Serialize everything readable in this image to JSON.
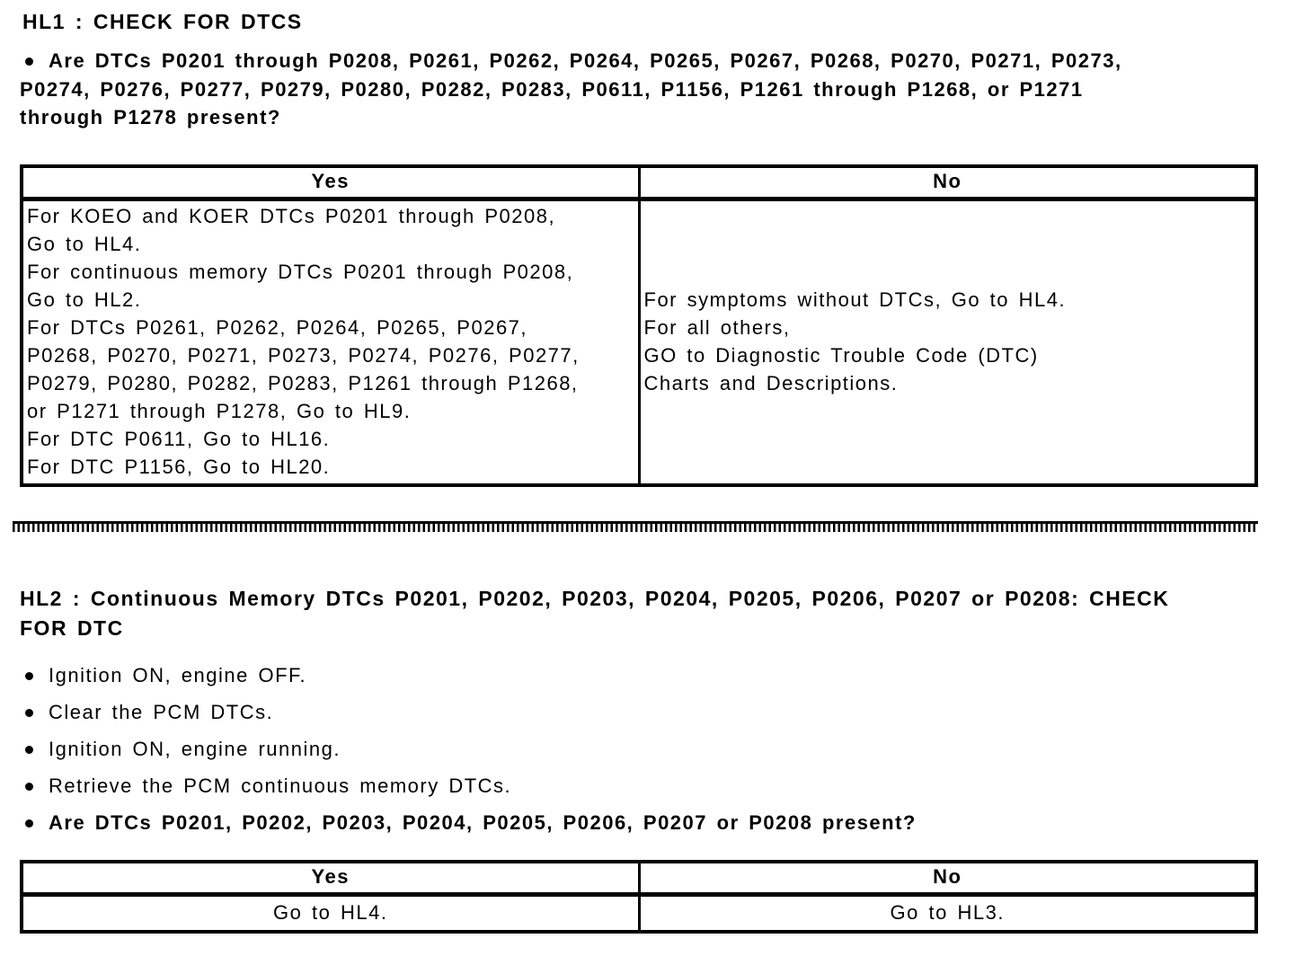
{
  "hl1": {
    "title": "HL1 : CHECK FOR DTCS",
    "question": "Are DTCs P0201 through P0208, P0261, P0262, P0264, P0265, P0267, P0268, P0270, P0271, P0273,\nP0274, P0276, P0277, P0279, P0280, P0282, P0283, P0611, P1156, P1261 through P1268, or P1271\nthrough P1278 present?",
    "table": {
      "yes_header": "Yes",
      "no_header": "No",
      "yes_text": "For KOEO and KOER DTCs P0201 through P0208,\nGo to HL4.\nFor continuous memory DTCs P0201 through P0208,\nGo to HL2.\nFor DTCs P0261, P0262, P0264, P0265, P0267,\nP0268, P0270, P0271, P0273, P0274, P0276, P0277,\nP0279, P0280, P0282, P0283, P1261 through P1268,\nor P1271 through P1278, Go to HL9.\nFor DTC P0611, Go to HL16.\nFor DTC P1156, Go to HL20.",
      "no_text": "For symptoms without DTCs, Go to HL4.\nFor all others,\nGO to Diagnostic Trouble Code (DTC)\nCharts and Descriptions."
    }
  },
  "hl2": {
    "title": "HL2 : Continuous Memory DTCs P0201, P0202, P0203, P0204, P0205, P0206, P0207 or P0208: CHECK\nFOR DTC",
    "steps": [
      "Ignition ON, engine OFF.",
      "Clear the PCM DTCs.",
      "Ignition ON, engine running.",
      "Retrieve the PCM continuous memory DTCs."
    ],
    "question": "Are DTCs P0201, P0202, P0203, P0204, P0205, P0206, P0207 or P0208 present?",
    "table": {
      "yes_header": "Yes",
      "no_header": "No",
      "yes_text": "Go to HL4.",
      "no_text": "Go to HL3."
    }
  }
}
